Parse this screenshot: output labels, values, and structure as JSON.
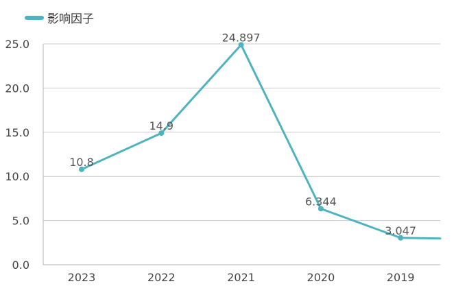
{
  "colors": {
    "series": "#4fb3bf",
    "grid": "#cccccc",
    "axis": "#b5b5b5"
  },
  "chart_data": {
    "type": "line",
    "title": "",
    "xlabel": "",
    "ylabel": "",
    "categories": [
      "2023",
      "2022",
      "2021",
      "2020",
      "2019"
    ],
    "series": [
      {
        "name": "影响因子",
        "values": [
          10.8,
          14.9,
          24.897,
          6.344,
          3.047
        ],
        "labels": [
          "10.8",
          "14.9",
          "24.897",
          "6.344",
          "3.047"
        ],
        "trailing_value": 2.9
      }
    ],
    "ylim": [
      0,
      25
    ],
    "yticks": [
      0,
      5,
      10,
      15,
      20,
      25
    ],
    "ytick_labels": [
      "0.0",
      "5.0",
      "10.0",
      "15.0",
      "20.0",
      "25.0"
    ],
    "grid": true,
    "legend_position": "top-left"
  }
}
